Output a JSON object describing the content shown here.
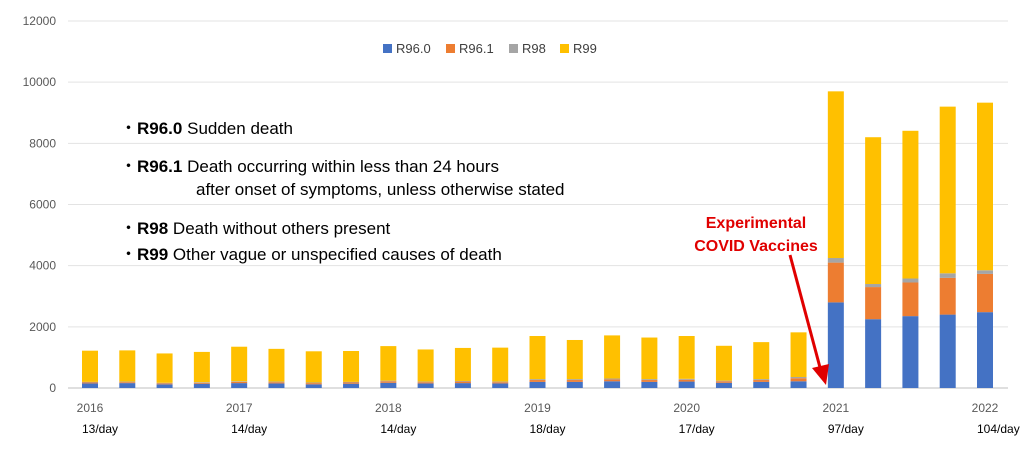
{
  "chart_data": {
    "type": "bar",
    "stacked": true,
    "ylim": [
      0,
      12000
    ],
    "yticks": [
      0,
      2000,
      4000,
      6000,
      8000,
      10000,
      12000
    ],
    "grid": true,
    "legend_position": "top",
    "series": [
      {
        "name": "R96.0",
        "color": "#4472c4",
        "values": [
          150,
          160,
          120,
          140,
          160,
          150,
          120,
          140,
          170,
          150,
          160,
          150,
          200,
          200,
          220,
          200,
          210,
          170,
          200,
          220,
          2800,
          2250,
          2350,
          2400,
          2480
        ]
      },
      {
        "name": "R96.1",
        "color": "#ed7d31",
        "values": [
          30,
          30,
          30,
          30,
          40,
          40,
          40,
          40,
          50,
          40,
          50,
          40,
          60,
          60,
          60,
          60,
          60,
          50,
          60,
          100,
          1300,
          1050,
          1100,
          1200,
          1250
        ]
      },
      {
        "name": "R98",
        "color": "#a5a5a5",
        "values": [
          20,
          20,
          20,
          20,
          20,
          20,
          20,
          20,
          20,
          20,
          20,
          20,
          30,
          30,
          30,
          30,
          30,
          20,
          30,
          40,
          150,
          100,
          130,
          150,
          120
        ]
      },
      {
        "name": "R99",
        "color": "#ffc000",
        "values": [
          1020,
          1020,
          960,
          990,
          1130,
          1070,
          1020,
          1010,
          1130,
          1050,
          1080,
          1110,
          1410,
          1280,
          1410,
          1360,
          1400,
          1140,
          1210,
          1460,
          5450,
          4800,
          4830,
          5450,
          5480
        ]
      }
    ],
    "year_labels": [
      {
        "label": "2016",
        "bar_index": 0
      },
      {
        "label": "2017",
        "bar_index": 4
      },
      {
        "label": "2018",
        "bar_index": 8
      },
      {
        "label": "2019",
        "bar_index": 12
      },
      {
        "label": "2020",
        "bar_index": 16
      },
      {
        "label": "2021",
        "bar_index": 20
      },
      {
        "label": "2022",
        "bar_index": 24
      }
    ],
    "per_day_labels": [
      {
        "label": "13/day",
        "bar_index": 0
      },
      {
        "label": "14/day",
        "bar_index": 4
      },
      {
        "label": "14/day",
        "bar_index": 8
      },
      {
        "label": "18/day",
        "bar_index": 12
      },
      {
        "label": "17/day",
        "bar_index": 16
      },
      {
        "label": "97/day",
        "bar_index": 20
      },
      {
        "label": "104/day",
        "bar_index": 24
      }
    ],
    "annotation": {
      "lines": [
        "Experimental",
        "COVID Vaccines"
      ],
      "color": "#e00000"
    }
  },
  "codes": [
    {
      "code": "R96.0",
      "text": "Sudden death",
      "bullet": "・"
    },
    {
      "code": "R96.1",
      "text": "Death occurring within less than 24 hours",
      "bullet": "・"
    },
    {
      "code": "",
      "text": "after onset of symptoms, unless otherwise stated",
      "bullet": ""
    },
    {
      "code": "R98",
      "text": "Death without others present",
      "bullet": "・"
    },
    {
      "code": "R99",
      "text": "Other vague or unspecified causes of death",
      "bullet": "・"
    }
  ]
}
